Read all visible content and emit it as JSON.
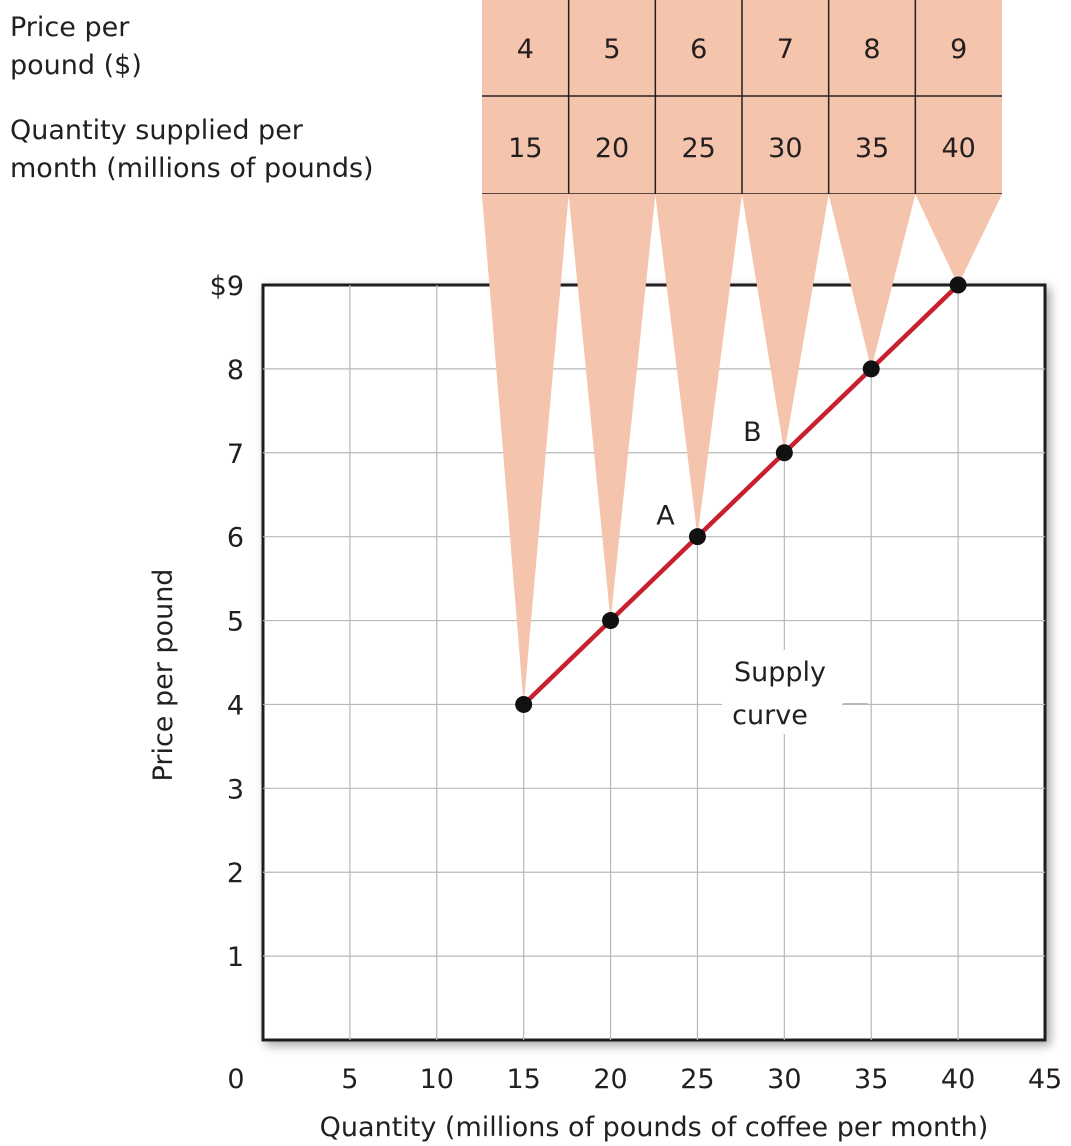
{
  "chart_data": {
    "type": "line",
    "xlabel": "Quantity (millions of pounds of coffee per month)",
    "ylabel": "Price per pound",
    "xlim": [
      0,
      45
    ],
    "ylim": [
      0,
      9
    ],
    "x_ticks": [
      "0",
      "5",
      "10",
      "15",
      "20",
      "25",
      "30",
      "35",
      "40",
      "45"
    ],
    "y_ticks": [
      "$9",
      "8",
      "7",
      "6",
      "5",
      "4",
      "3",
      "2",
      "1"
    ],
    "grid": true,
    "series": [
      {
        "name": "Supply curve",
        "x": [
          15,
          20,
          25,
          30,
          35,
          40
        ],
        "y": [
          4,
          5,
          6,
          7,
          8,
          9
        ],
        "color": "#c8202f"
      }
    ],
    "point_labels": [
      {
        "label": "A",
        "x": 25,
        "y": 6
      },
      {
        "label": "B",
        "x": 30,
        "y": 7
      }
    ],
    "annotations": {
      "supply_curve_line1": "Supply",
      "supply_curve_line2": "curve"
    },
    "table": {
      "price_label_line1": "Price per",
      "price_label_line2": "pound ($)",
      "quantity_label_line1": "Quantity supplied per",
      "quantity_label_line2": "month (millions of pounds)",
      "prices": [
        "4",
        "5",
        "6",
        "7",
        "8",
        "9"
      ],
      "quantities": [
        "15",
        "20",
        "25",
        "30",
        "35",
        "40"
      ]
    },
    "colors": {
      "table_fill": "#f5c4ad",
      "curve": "#c8202f",
      "point": "#111111",
      "grid": "#b8b8b8",
      "frame": "#231f20"
    }
  }
}
